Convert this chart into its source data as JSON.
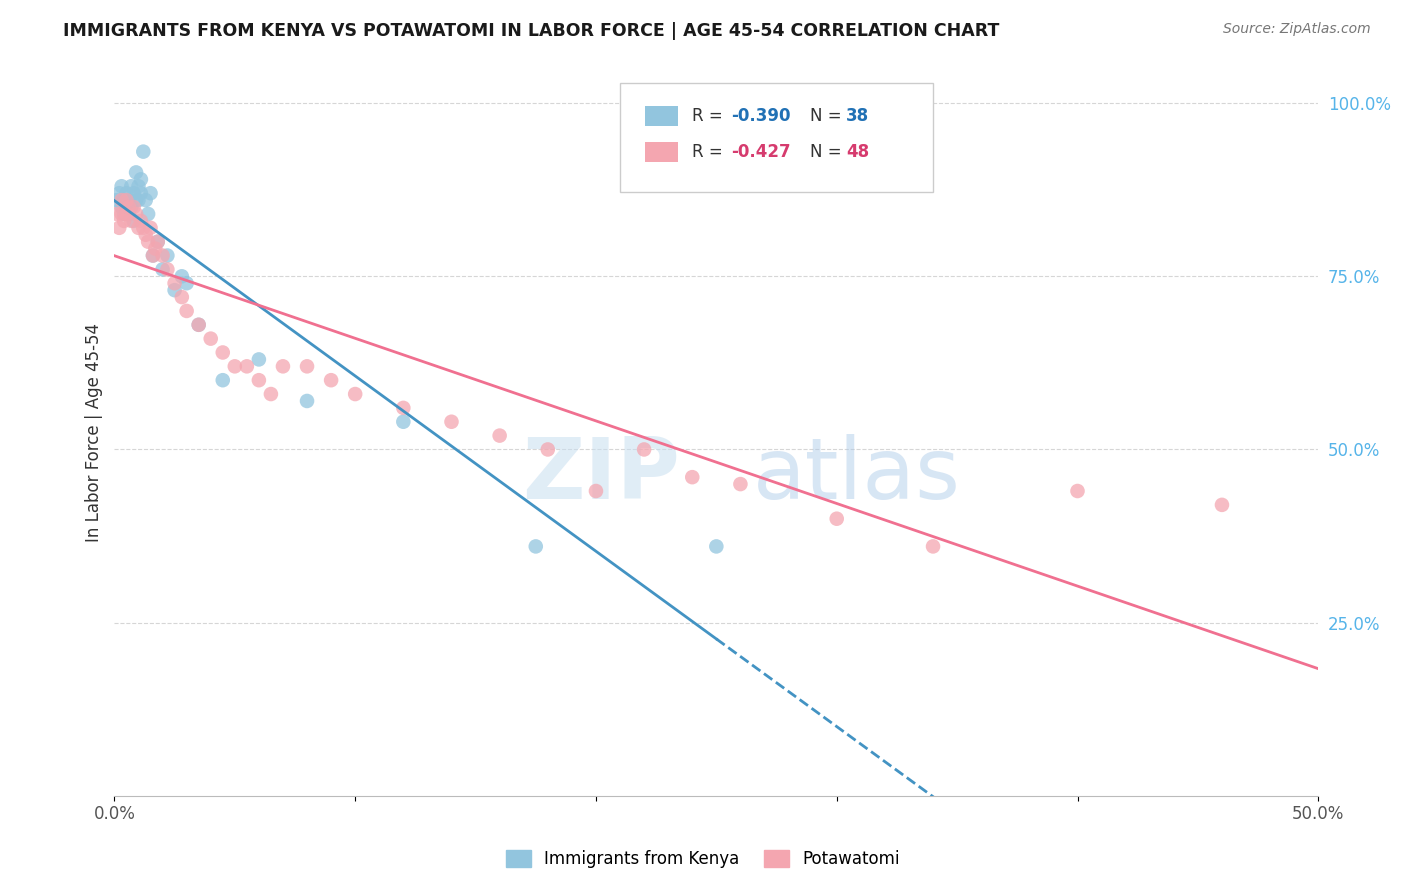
{
  "title": "IMMIGRANTS FROM KENYA VS POTAWATOMI IN LABOR FORCE | AGE 45-54 CORRELATION CHART",
  "source": "Source: ZipAtlas.com",
  "ylabel": "In Labor Force | Age 45-54",
  "xlim": [
    0.0,
    0.5
  ],
  "ylim": [
    0.0,
    1.05
  ],
  "y_ticks_right": [
    0.25,
    0.5,
    0.75,
    1.0
  ],
  "y_tick_labels_right": [
    "25.0%",
    "50.0%",
    "75.0%",
    "100.0%"
  ],
  "legend_r1": "R = -0.390",
  "legend_n1": "N = 38",
  "legend_r2": "R = -0.427",
  "legend_n2": "N = 48",
  "watermark_zip": "ZIP",
  "watermark_atlas": "atlas",
  "blue_color": "#92c5de",
  "pink_color": "#f4a6b0",
  "blue_line_color": "#4393c3",
  "pink_line_color": "#f07090",
  "kenya_x": [
    0.001,
    0.002,
    0.003,
    0.003,
    0.004,
    0.004,
    0.005,
    0.005,
    0.006,
    0.006,
    0.007,
    0.007,
    0.008,
    0.008,
    0.009,
    0.009,
    0.01,
    0.01,
    0.011,
    0.011,
    0.012,
    0.013,
    0.014,
    0.015,
    0.016,
    0.018,
    0.02,
    0.022,
    0.025,
    0.028,
    0.03,
    0.035,
    0.045,
    0.06,
    0.08,
    0.12,
    0.175,
    0.25
  ],
  "kenya_y": [
    0.86,
    0.87,
    0.85,
    0.88,
    0.86,
    0.84,
    0.87,
    0.85,
    0.86,
    0.84,
    0.88,
    0.85,
    0.87,
    0.83,
    0.86,
    0.9,
    0.88,
    0.86,
    0.89,
    0.87,
    0.93,
    0.86,
    0.84,
    0.87,
    0.78,
    0.8,
    0.76,
    0.78,
    0.73,
    0.75,
    0.74,
    0.68,
    0.6,
    0.63,
    0.57,
    0.54,
    0.36,
    0.36
  ],
  "potawatomi_x": [
    0.001,
    0.002,
    0.003,
    0.003,
    0.004,
    0.005,
    0.005,
    0.006,
    0.007,
    0.008,
    0.009,
    0.01,
    0.011,
    0.012,
    0.013,
    0.014,
    0.015,
    0.016,
    0.017,
    0.018,
    0.02,
    0.022,
    0.025,
    0.028,
    0.03,
    0.035,
    0.04,
    0.045,
    0.05,
    0.055,
    0.06,
    0.065,
    0.07,
    0.08,
    0.09,
    0.1,
    0.12,
    0.14,
    0.16,
    0.18,
    0.2,
    0.22,
    0.24,
    0.26,
    0.3,
    0.34,
    0.4,
    0.46
  ],
  "potawatomi_y": [
    0.84,
    0.82,
    0.86,
    0.84,
    0.83,
    0.84,
    0.86,
    0.85,
    0.83,
    0.85,
    0.84,
    0.82,
    0.83,
    0.82,
    0.81,
    0.8,
    0.82,
    0.78,
    0.79,
    0.8,
    0.78,
    0.76,
    0.74,
    0.72,
    0.7,
    0.68,
    0.66,
    0.64,
    0.62,
    0.62,
    0.6,
    0.58,
    0.62,
    0.62,
    0.6,
    0.58,
    0.56,
    0.54,
    0.52,
    0.5,
    0.44,
    0.5,
    0.46,
    0.45,
    0.4,
    0.36,
    0.44,
    0.42
  ],
  "background_color": "#ffffff",
  "grid_color": "#cccccc"
}
